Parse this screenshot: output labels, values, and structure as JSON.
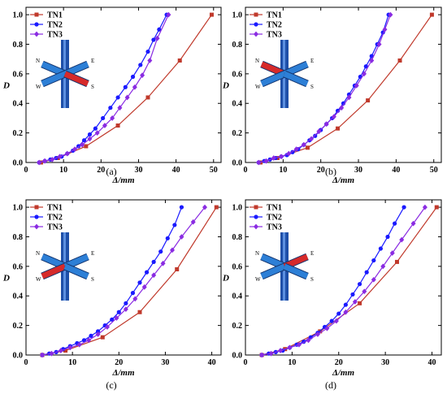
{
  "colors": {
    "TN1": "#c0392b",
    "TN2": "#1a1aff",
    "TN3": "#8a2be2",
    "beam_blue": "#2d7fd6",
    "beam_red": "#d62a2a",
    "column": "#1e4fa8"
  },
  "compass": [
    "N",
    "E",
    "W",
    "S"
  ],
  "chart_data": [
    {
      "type": "line",
      "caption": "(a)",
      "xlabel": "Δ/mm",
      "ylabel": "D",
      "xlim": [
        0,
        52
      ],
      "ylim": [
        0,
        1.05
      ],
      "xticks": [
        "0",
        "10",
        "20",
        "30",
        "40",
        "50"
      ],
      "yticks": [
        "0.0",
        "0.2",
        "0.4",
        "0.6",
        "0.8",
        "1.0"
      ],
      "highlight": "S",
      "legend": [
        "TN1",
        "TN2",
        "TN3"
      ],
      "series": [
        {
          "name": "TN1",
          "marker": "square",
          "x": [
            4,
            8.5,
            16,
            24.5,
            32.5,
            41,
            49.5
          ],
          "y": [
            0.0,
            0.03,
            0.11,
            0.25,
            0.44,
            0.69,
            1.0
          ]
        },
        {
          "name": "TN2",
          "marker": "circle",
          "x": [
            3.5,
            5,
            6.5,
            8,
            9.5,
            11,
            12.5,
            14,
            15.5,
            17,
            18.5,
            20.5,
            22.5,
            24.5,
            26.5,
            28.5,
            30.5,
            32.5,
            34,
            35.5,
            37.5
          ],
          "y": [
            0.0,
            0.01,
            0.02,
            0.03,
            0.04,
            0.06,
            0.08,
            0.11,
            0.15,
            0.19,
            0.23,
            0.3,
            0.37,
            0.44,
            0.51,
            0.58,
            0.66,
            0.75,
            0.83,
            0.9,
            1.0
          ]
        },
        {
          "name": "TN3",
          "marker": "diamond",
          "x": [
            3.5,
            5,
            7,
            9,
            11,
            13,
            15,
            17,
            19,
            21,
            23,
            25,
            27,
            29,
            31,
            33,
            35,
            38
          ],
          "y": [
            0.0,
            0.01,
            0.02,
            0.04,
            0.06,
            0.09,
            0.12,
            0.16,
            0.2,
            0.25,
            0.3,
            0.37,
            0.44,
            0.51,
            0.59,
            0.69,
            0.84,
            1.0
          ]
        }
      ]
    },
    {
      "type": "line",
      "caption": "(b)",
      "xlabel": "Δ/mm",
      "ylabel": "D",
      "xlim": [
        0,
        52
      ],
      "ylim": [
        0,
        1.05
      ],
      "xticks": [
        "0",
        "10",
        "20",
        "30",
        "40",
        "50"
      ],
      "yticks": [
        "0.0",
        "0.2",
        "0.4",
        "0.6",
        "0.8",
        "1.0"
      ],
      "highlight": "N",
      "legend": [
        "TN1",
        "TN2",
        "TN3"
      ],
      "series": [
        {
          "name": "TN1",
          "marker": "square",
          "x": [
            4,
            8.5,
            16.5,
            24.5,
            32.5,
            41,
            49.5
          ],
          "y": [
            0.0,
            0.03,
            0.1,
            0.23,
            0.42,
            0.69,
            1.0
          ]
        },
        {
          "name": "TN2",
          "marker": "circle",
          "x": [
            3.5,
            5,
            6.5,
            8,
            9.5,
            11,
            12.5,
            14,
            15.5,
            17,
            18.5,
            20,
            21.5,
            23,
            24.5,
            26,
            27.5,
            29,
            30.5,
            32,
            33.5,
            35,
            36.5,
            38
          ],
          "y": [
            0.0,
            0.01,
            0.02,
            0.03,
            0.04,
            0.05,
            0.07,
            0.09,
            0.12,
            0.15,
            0.18,
            0.22,
            0.26,
            0.3,
            0.35,
            0.4,
            0.46,
            0.52,
            0.58,
            0.65,
            0.72,
            0.8,
            0.88,
            1.0
          ]
        },
        {
          "name": "TN3",
          "marker": "diamond",
          "x": [
            3.5,
            5.5,
            7.5,
            9.5,
            11.5,
            13.5,
            15.5,
            17.5,
            19.5,
            21.5,
            23.5,
            25.5,
            27.5,
            29.5,
            31.5,
            33.5,
            35.5,
            37,
            38.5
          ],
          "y": [
            0.0,
            0.01,
            0.03,
            0.04,
            0.06,
            0.09,
            0.12,
            0.16,
            0.21,
            0.26,
            0.31,
            0.37,
            0.44,
            0.52,
            0.6,
            0.69,
            0.8,
            0.9,
            1.0
          ]
        }
      ]
    },
    {
      "type": "line",
      "caption": "(c)",
      "xlabel": "Δ/mm",
      "ylabel": "D",
      "xlim": [
        0,
        42
      ],
      "ylim": [
        0,
        1.05
      ],
      "xticks": [
        "0",
        "10",
        "20",
        "30",
        "40"
      ],
      "yticks": [
        "0.0",
        "0.2",
        "0.4",
        "0.6",
        "0.8",
        "1.0"
      ],
      "highlight": "W",
      "legend": [
        "TN1",
        "TN2",
        "TN3"
      ],
      "series": [
        {
          "name": "TN1",
          "marker": "square",
          "x": [
            3.5,
            8.5,
            16.5,
            24.5,
            32.5,
            41
          ],
          "y": [
            0.0,
            0.03,
            0.12,
            0.29,
            0.58,
            1.0
          ]
        },
        {
          "name": "TN2",
          "marker": "circle",
          "x": [
            3.5,
            5,
            6.5,
            8,
            9.5,
            11,
            12.5,
            14,
            15.5,
            17,
            18.5,
            20,
            21.5,
            23,
            24.5,
            26,
            27.5,
            29,
            30.5,
            32,
            33.5
          ],
          "y": [
            0.0,
            0.01,
            0.02,
            0.04,
            0.06,
            0.08,
            0.1,
            0.13,
            0.16,
            0.2,
            0.24,
            0.29,
            0.35,
            0.42,
            0.49,
            0.56,
            0.63,
            0.7,
            0.79,
            0.88,
            1.0
          ]
        },
        {
          "name": "TN3",
          "marker": "diamond",
          "x": [
            3.5,
            5.5,
            7.5,
            9.5,
            11.5,
            13.5,
            15.5,
            17.5,
            19.5,
            21.5,
            23.5,
            25.5,
            27.5,
            29.5,
            31.5,
            33.5,
            36,
            38.5
          ],
          "y": [
            0.0,
            0.01,
            0.03,
            0.05,
            0.07,
            0.1,
            0.14,
            0.19,
            0.25,
            0.31,
            0.38,
            0.46,
            0.54,
            0.62,
            0.71,
            0.8,
            0.9,
            1.0
          ]
        }
      ]
    },
    {
      "type": "line",
      "caption": "(d)",
      "xlabel": "Δ/mm",
      "ylabel": "D",
      "xlim": [
        0,
        42
      ],
      "ylim": [
        0,
        1.05
      ],
      "xticks": [
        "0",
        "10",
        "20",
        "30",
        "40"
      ],
      "yticks": [
        "0.0",
        "0.2",
        "0.4",
        "0.6",
        "0.8",
        "1.0"
      ],
      "highlight": "E",
      "legend": [
        "TN1",
        "TN2",
        "TN3"
      ],
      "series": [
        {
          "name": "TN1",
          "marker": "square",
          "x": [
            3.5,
            8.5,
            16,
            24.5,
            32.5,
            41
          ],
          "y": [
            0.0,
            0.04,
            0.16,
            0.35,
            0.63,
            1.0
          ]
        },
        {
          "name": "TN2",
          "marker": "circle",
          "x": [
            3.5,
            5,
            6.5,
            8,
            9.5,
            11,
            12.5,
            14,
            15.5,
            17,
            18.5,
            20,
            21.5,
            23,
            24.5,
            26,
            27.5,
            29,
            30.5,
            32,
            34
          ],
          "y": [
            0.0,
            0.01,
            0.02,
            0.03,
            0.05,
            0.07,
            0.09,
            0.12,
            0.15,
            0.19,
            0.23,
            0.28,
            0.34,
            0.41,
            0.48,
            0.56,
            0.64,
            0.72,
            0.8,
            0.89,
            1.0
          ]
        },
        {
          "name": "TN3",
          "marker": "diamond",
          "x": [
            3.5,
            5.5,
            7.5,
            9.5,
            11.5,
            13.5,
            15.5,
            17.5,
            19.5,
            21.5,
            23.5,
            25.5,
            27.5,
            29.5,
            31.5,
            33.5,
            36,
            38.5
          ],
          "y": [
            0.0,
            0.01,
            0.03,
            0.05,
            0.07,
            0.1,
            0.14,
            0.18,
            0.23,
            0.29,
            0.36,
            0.43,
            0.51,
            0.6,
            0.69,
            0.78,
            0.89,
            1.0
          ]
        }
      ]
    }
  ]
}
